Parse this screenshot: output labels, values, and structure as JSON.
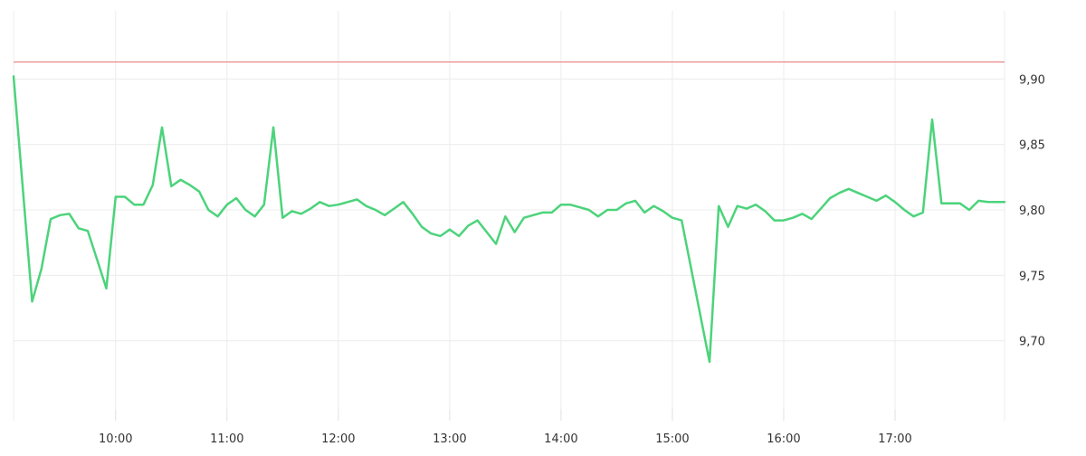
{
  "chart_data": {
    "type": "line",
    "title": "",
    "xlabel": "",
    "ylabel": "",
    "x_ticks": [
      "10:00",
      "11:00",
      "12:00",
      "13:00",
      "14:00",
      "15:00",
      "16:00",
      "17:00"
    ],
    "y_ticks": [
      "9,70",
      "9,75",
      "9,80",
      "9,85",
      "9,90"
    ],
    "xlim": [
      "09:05",
      "17:59"
    ],
    "ylim": [
      9.648,
      9.952
    ],
    "reference_line": {
      "value": 9.913,
      "color": "#e57373"
    },
    "series": [
      {
        "color": "#4cd37b",
        "x": [
          "09:05",
          "09:15",
          "09:20",
          "09:25",
          "09:30",
          "09:35",
          "09:40",
          "09:45",
          "09:50",
          "09:55",
          "10:00",
          "10:05",
          "10:10",
          "10:15",
          "10:20",
          "10:25",
          "10:30",
          "10:35",
          "10:40",
          "10:45",
          "10:50",
          "10:55",
          "11:00",
          "11:05",
          "11:10",
          "11:15",
          "11:20",
          "11:25",
          "11:30",
          "11:35",
          "11:40",
          "11:45",
          "11:50",
          "11:55",
          "12:00",
          "12:05",
          "12:10",
          "12:15",
          "12:20",
          "12:25",
          "12:30",
          "12:35",
          "12:40",
          "12:45",
          "12:50",
          "12:55",
          "13:00",
          "13:05",
          "13:10",
          "13:15",
          "13:20",
          "13:25",
          "13:30",
          "13:35",
          "13:40",
          "13:45",
          "13:50",
          "13:55",
          "14:00",
          "14:05",
          "14:10",
          "14:15",
          "14:20",
          "14:25",
          "14:30",
          "14:35",
          "14:40",
          "14:45",
          "14:50",
          "14:55",
          "15:00",
          "15:05",
          "15:20",
          "15:25",
          "15:30",
          "15:35",
          "15:40",
          "15:45",
          "15:50",
          "15:55",
          "16:00",
          "16:05",
          "16:10",
          "16:15",
          "16:20",
          "16:25",
          "16:30",
          "16:35",
          "16:40",
          "16:45",
          "16:50",
          "16:55",
          "17:00",
          "17:05",
          "17:10",
          "17:15",
          "17:20",
          "17:25",
          "17:30",
          "17:35",
          "17:40",
          "17:45",
          "17:50",
          "17:55",
          "17:59"
        ],
        "y": [
          9.902,
          9.73,
          9.755,
          9.793,
          9.796,
          9.797,
          9.786,
          9.784,
          9.762,
          9.74,
          9.81,
          9.81,
          9.804,
          9.804,
          9.819,
          9.863,
          9.818,
          9.823,
          9.819,
          9.814,
          9.8,
          9.795,
          9.804,
          9.809,
          9.8,
          9.795,
          9.804,
          9.863,
          9.794,
          9.799,
          9.797,
          9.801,
          9.806,
          9.803,
          9.804,
          9.806,
          9.808,
          9.803,
          9.8,
          9.796,
          9.801,
          9.806,
          9.797,
          9.787,
          9.782,
          9.78,
          9.785,
          9.78,
          9.788,
          9.792,
          9.783,
          9.774,
          9.795,
          9.783,
          9.794,
          9.796,
          9.798,
          9.798,
          9.804,
          9.804,
          9.802,
          9.8,
          9.795,
          9.8,
          9.8,
          9.805,
          9.807,
          9.798,
          9.803,
          9.799,
          9.794,
          9.792,
          9.684,
          9.803,
          9.787,
          9.803,
          9.801,
          9.804,
          9.799,
          9.792,
          9.792,
          9.794,
          9.797,
          9.793,
          9.801,
          9.809,
          9.813,
          9.816,
          9.813,
          9.81,
          9.807,
          9.811,
          9.806,
          9.8,
          9.795,
          9.798,
          9.869,
          9.805,
          9.805,
          9.805,
          9.8,
          9.807,
          9.806,
          9.806,
          9.806
        ]
      }
    ],
    "grid": true,
    "legend": "none"
  }
}
